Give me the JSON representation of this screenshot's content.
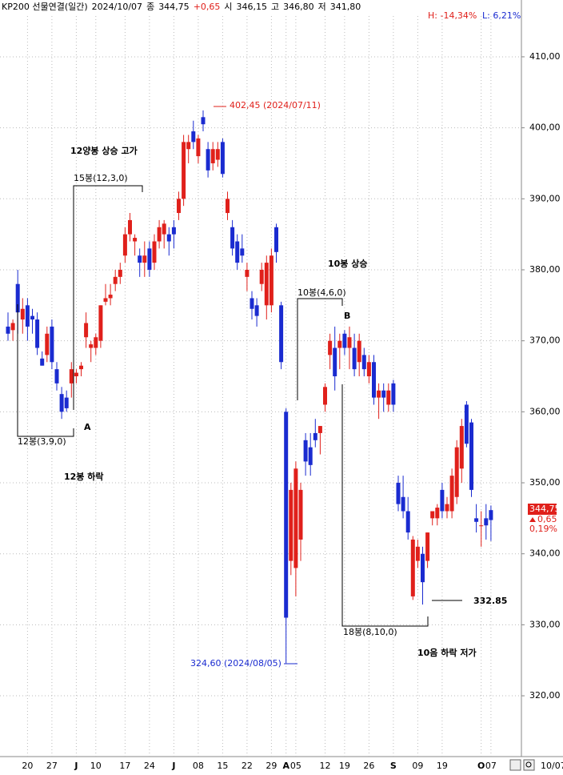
{
  "chart_data": {
    "type": "candlestick",
    "header": [
      "KP200 선물연결(일간)",
      "2024/10/07",
      "종",
      "344,75",
      "+0,65",
      "시",
      "346,15",
      "고",
      "346,80",
      "저",
      "341,80"
    ],
    "high_low": [
      "H: -14,34%",
      "L: 6,21%"
    ],
    "last_price": [
      "344,75",
      "0,65",
      "0,19%"
    ],
    "date_label": "10/07",
    "up_color": "#e0201b",
    "down_color": "#1a2bd0",
    "ylim": [
      312,
      418
    ],
    "yticks": [
      {
        "value": 320,
        "label": "320,00"
      },
      {
        "value": 330,
        "label": "330,00"
      },
      {
        "value": 340,
        "label": "340,00"
      },
      {
        "value": 350,
        "label": "350,00"
      },
      {
        "value": 360,
        "label": "360,00"
      },
      {
        "value": 370,
        "label": "370,00"
      },
      {
        "value": 380,
        "label": "380,00"
      },
      {
        "value": 390,
        "label": "390,00"
      },
      {
        "value": 400,
        "label": "400,00"
      },
      {
        "value": 410,
        "label": "410,00"
      }
    ],
    "grid": true,
    "annotations": [
      "402,45 (2024/07/11)",
      "12양봉 상승 고가",
      "15봉(12,3,0)",
      "12봉(3,9,0)",
      "A",
      "12봉 하락",
      "10봉 상승",
      "10봉(4,6,0)",
      "B",
      "18봉(8,10,0)",
      "332.85",
      "10음 하락 저가",
      "324,60 (2024/08/05)"
    ],
    "categories": [
      null,
      null,
      null,
      null,
      "20",
      null,
      null,
      null,
      null,
      "27",
      null,
      null,
      null,
      null,
      "J",
      null,
      null,
      null,
      "10",
      null,
      null,
      null,
      null,
      null,
      "17",
      null,
      null,
      null,
      null,
      "24",
      null,
      null,
      null,
      null,
      "J",
      null,
      null,
      null,
      null,
      "08",
      null,
      null,
      null,
      null,
      "15",
      null,
      null,
      null,
      null,
      "22",
      null,
      null,
      null,
      null,
      "29",
      null,
      null,
      "A",
      null,
      "05",
      null,
      null,
      null,
      null,
      null,
      "12",
      null,
      null,
      null,
      "19",
      null,
      null,
      null,
      null,
      "26",
      null,
      null,
      null,
      null,
      "S",
      null,
      null,
      null,
      null,
      "09",
      null,
      null,
      null,
      null,
      "19",
      null,
      null,
      null,
      null,
      null,
      null,
      null,
      "O",
      null,
      "07"
    ],
    "candles": [
      {
        "o": 372,
        "h": 374,
        "l": 370,
        "c": 371
      },
      {
        "o": 371.5,
        "h": 373,
        "l": 370,
        "c": 372.5
      },
      {
        "o": 378,
        "h": 380,
        "l": 371,
        "c": 374
      },
      {
        "o": 373,
        "h": 376,
        "l": 371,
        "c": 374.5
      },
      {
        "o": 375,
        "h": 376,
        "l": 370,
        "c": 372
      },
      {
        "o": 373.5,
        "h": 374.5,
        "l": 371,
        "c": 373
      },
      {
        "o": 373,
        "h": 374,
        "l": 368,
        "c": 369
      },
      {
        "o": 367.5,
        "h": 368.5,
        "l": 366.5,
        "c": 366.5
      },
      {
        "o": 368,
        "h": 372,
        "l": 367,
        "c": 371
      },
      {
        "o": 372,
        "h": 373,
        "l": 366,
        "c": 367
      },
      {
        "o": 366,
        "h": 367,
        "l": 363,
        "c": 364
      },
      {
        "o": 362.5,
        "h": 363.5,
        "l": 359,
        "c": 360
      },
      {
        "o": 362,
        "h": 363,
        "l": 360,
        "c": 360.5
      },
      {
        "o": 364,
        "h": 367,
        "l": 362,
        "c": 366
      },
      {
        "o": 365,
        "h": 366,
        "l": 364,
        "c": 365.5
      },
      {
        "o": 366,
        "h": 367,
        "l": 365,
        "c": 366.5
      },
      {
        "o": 370.5,
        "h": 374,
        "l": 369,
        "c": 372.5
      },
      {
        "o": 369,
        "h": 370,
        "l": 367,
        "c": 369.5
      },
      {
        "o": 369,
        "h": 371,
        "l": 368,
        "c": 370.5
      },
      {
        "o": 370,
        "h": 375,
        "l": 369,
        "c": 375
      },
      {
        "o": 375.5,
        "h": 378,
        "l": 375,
        "c": 376
      },
      {
        "o": 376,
        "h": 378,
        "l": 375,
        "c": 376.5
      },
      {
        "o": 378,
        "h": 380,
        "l": 377,
        "c": 379
      },
      {
        "o": 379,
        "h": 381,
        "l": 378,
        "c": 380
      },
      {
        "o": 382,
        "h": 386,
        "l": 381,
        "c": 385
      },
      {
        "o": 385,
        "h": 388,
        "l": 384,
        "c": 387
      },
      {
        "o": 384,
        "h": 385,
        "l": 382,
        "c": 384.5
      },
      {
        "o": 382,
        "h": 383,
        "l": 379,
        "c": 381
      },
      {
        "o": 381,
        "h": 384,
        "l": 379,
        "c": 382
      },
      {
        "o": 383,
        "h": 384,
        "l": 379,
        "c": 380
      },
      {
        "o": 381,
        "h": 385,
        "l": 380,
        "c": 384
      },
      {
        "o": 384,
        "h": 387,
        "l": 383,
        "c": 386
      },
      {
        "o": 385,
        "h": 387,
        "l": 383,
        "c": 386.5
      },
      {
        "o": 385,
        "h": 386,
        "l": 382,
        "c": 384
      },
      {
        "o": 386,
        "h": 387,
        "l": 383,
        "c": 385
      },
      {
        "o": 388,
        "h": 391,
        "l": 387,
        "c": 390
      },
      {
        "o": 390,
        "h": 399,
        "l": 389,
        "c": 398
      },
      {
        "o": 397,
        "h": 399,
        "l": 395,
        "c": 398
      },
      {
        "o": 399.5,
        "h": 401,
        "l": 397,
        "c": 398
      },
      {
        "o": 396,
        "h": 399,
        "l": 395,
        "c": 398.5
      },
      {
        "o": 401.5,
        "h": 402.45,
        "l": 399.5,
        "c": 400.5
      },
      {
        "o": 397,
        "h": 398,
        "l": 393,
        "c": 394
      },
      {
        "o": 395,
        "h": 398,
        "l": 394,
        "c": 397
      },
      {
        "o": 395.5,
        "h": 398,
        "l": 394.5,
        "c": 397
      },
      {
        "o": 398,
        "h": 398.5,
        "l": 393,
        "c": 393.5
      },
      {
        "o": 388,
        "h": 391,
        "l": 387,
        "c": 390
      },
      {
        "o": 386,
        "h": 387,
        "l": 382,
        "c": 383
      },
      {
        "o": 384,
        "h": 385,
        "l": 380,
        "c": 381
      },
      {
        "o": 383,
        "h": 385,
        "l": 381,
        "c": 382
      },
      {
        "o": 379,
        "h": 381,
        "l": 377,
        "c": 380
      },
      {
        "o": 376,
        "h": 377,
        "l": 373,
        "c": 374.5
      },
      {
        "o": 375,
        "h": 376,
        "l": 372,
        "c": 373.5
      },
      {
        "o": 378,
        "h": 381,
        "l": 377,
        "c": 380
      },
      {
        "o": 375,
        "h": 382,
        "l": 373,
        "c": 381
      },
      {
        "o": 375,
        "h": 383,
        "l": 374,
        "c": 382
      },
      {
        "o": 386,
        "h": 386.5,
        "l": 381,
        "c": 382.5
      },
      {
        "o": 375,
        "h": 375.5,
        "l": 366,
        "c": 367
      },
      {
        "o": 360,
        "h": 360.5,
        "l": 324.6,
        "c": 331
      },
      {
        "o": 339,
        "h": 350,
        "l": 337,
        "c": 349
      },
      {
        "o": 338,
        "h": 353,
        "l": 334,
        "c": 352
      },
      {
        "o": 342,
        "h": 350,
        "l": 339,
        "c": 349
      },
      {
        "o": 356,
        "h": 357,
        "l": 351,
        "c": 353
      },
      {
        "o": 355,
        "h": 357,
        "l": 351,
        "c": 352.5
      },
      {
        "o": 357,
        "h": 359,
        "l": 355,
        "c": 356
      },
      {
        "o": 357,
        "h": 358,
        "l": 354,
        "c": 358
      },
      {
        "o": 361,
        "h": 364,
        "l": 360,
        "c": 363.5
      },
      {
        "o": 368,
        "h": 371,
        "l": 366,
        "c": 370
      },
      {
        "o": 369,
        "h": 372,
        "l": 363,
        "c": 365
      },
      {
        "o": 369,
        "h": 371,
        "l": 366,
        "c": 370
      },
      {
        "o": 371,
        "h": 371.5,
        "l": 368,
        "c": 369
      },
      {
        "o": 369,
        "h": 372,
        "l": 366,
        "c": 370.5
      },
      {
        "o": 369,
        "h": 371,
        "l": 365,
        "c": 366
      },
      {
        "o": 367,
        "h": 371,
        "l": 365,
        "c": 370
      },
      {
        "o": 368,
        "h": 369,
        "l": 365,
        "c": 366
      },
      {
        "o": 365,
        "h": 368,
        "l": 364,
        "c": 367
      },
      {
        "o": 367,
        "h": 368,
        "l": 361,
        "c": 362
      },
      {
        "o": 362,
        "h": 364,
        "l": 359,
        "c": 363
      },
      {
        "o": 363,
        "h": 364,
        "l": 360,
        "c": 362
      },
      {
        "o": 361,
        "h": 364,
        "l": 360,
        "c": 363
      },
      {
        "o": 364,
        "h": 364.5,
        "l": 360,
        "c": 361
      },
      {
        "o": 350,
        "h": 351,
        "l": 346,
        "c": 347
      },
      {
        "o": 348,
        "h": 351,
        "l": 345,
        "c": 346
      },
      {
        "o": 346,
        "h": 348,
        "l": 342,
        "c": 343
      },
      {
        "o": 334,
        "h": 342.5,
        "l": 333.5,
        "c": 342
      },
      {
        "o": 339,
        "h": 342,
        "l": 338,
        "c": 341
      },
      {
        "o": 340,
        "h": 341,
        "l": 332.85,
        "c": 336
      },
      {
        "o": 339,
        "h": 343,
        "l": 338,
        "c": 343
      },
      {
        "o": 345,
        "h": 346,
        "l": 344,
        "c": 346
      },
      {
        "o": 345,
        "h": 347,
        "l": 344,
        "c": 346.5
      },
      {
        "o": 349,
        "h": 350,
        "l": 345,
        "c": 346
      },
      {
        "o": 346,
        "h": 348,
        "l": 345,
        "c": 347
      },
      {
        "o": 346,
        "h": 352,
        "l": 345,
        "c": 351
      },
      {
        "o": 348,
        "h": 356,
        "l": 347,
        "c": 355
      },
      {
        "o": 352,
        "h": 359,
        "l": 350,
        "c": 358
      },
      {
        "o": 361,
        "h": 361.5,
        "l": 355,
        "c": 355.5
      },
      {
        "o": 358.5,
        "h": 359,
        "l": 348,
        "c": 349
      },
      {
        "o": 345,
        "h": 347,
        "l": 343,
        "c": 344.5
      },
      {
        "o": 344,
        "h": 346,
        "l": 341,
        "c": 344
      },
      {
        "o": 345,
        "h": 347,
        "l": 342,
        "c": 344
      },
      {
        "o": 346.15,
        "h": 346.8,
        "l": 341.8,
        "c": 344.75
      }
    ]
  }
}
